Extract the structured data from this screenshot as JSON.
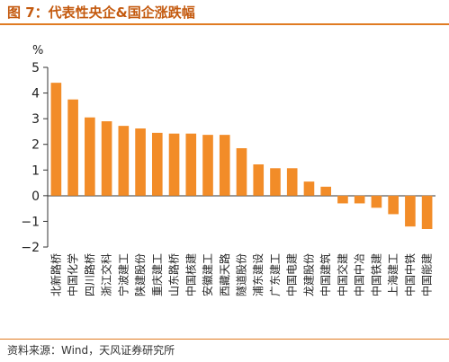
{
  "header": {
    "title": "图 7：代表性央企&国企涨跌幅"
  },
  "footer": {
    "source": "资料来源：Wind，天风证券研究所"
  },
  "colors": {
    "bar": "#f28c28",
    "title": "#c45a0f",
    "rule": "#e07b22"
  },
  "chart_data": {
    "type": "bar",
    "title": "",
    "ylabel": "%",
    "xlabel": "",
    "ylim": [
      -2,
      5
    ],
    "yticks": [
      -2,
      -1,
      0,
      1,
      2,
      3,
      4,
      5
    ],
    "yticklabels": [
      "−2",
      "−1",
      "0",
      "1",
      "2",
      "3",
      "4",
      "5"
    ],
    "grid": false,
    "categories": [
      "北新路桥",
      "中国化学",
      "四川路桥",
      "浙江交科",
      "宁波建工",
      "陕建股份",
      "重庆建工",
      "山东路桥",
      "中国核建",
      "安徽建工",
      "西藏天路",
      "隧道股份",
      "浦东建设",
      "广东建工",
      "中国电建",
      "龙建股份",
      "中国建筑",
      "中国交建",
      "中国中冶",
      "中国铁建",
      "上海建工",
      "中国中铁",
      "中国能建"
    ],
    "values": [
      4.4,
      3.75,
      3.05,
      2.9,
      2.72,
      2.62,
      2.45,
      2.42,
      2.42,
      2.37,
      2.37,
      1.85,
      1.22,
      1.07,
      1.07,
      0.55,
      0.35,
      -0.3,
      -0.3,
      -0.47,
      -0.72,
      -1.2,
      -1.3
    ]
  }
}
